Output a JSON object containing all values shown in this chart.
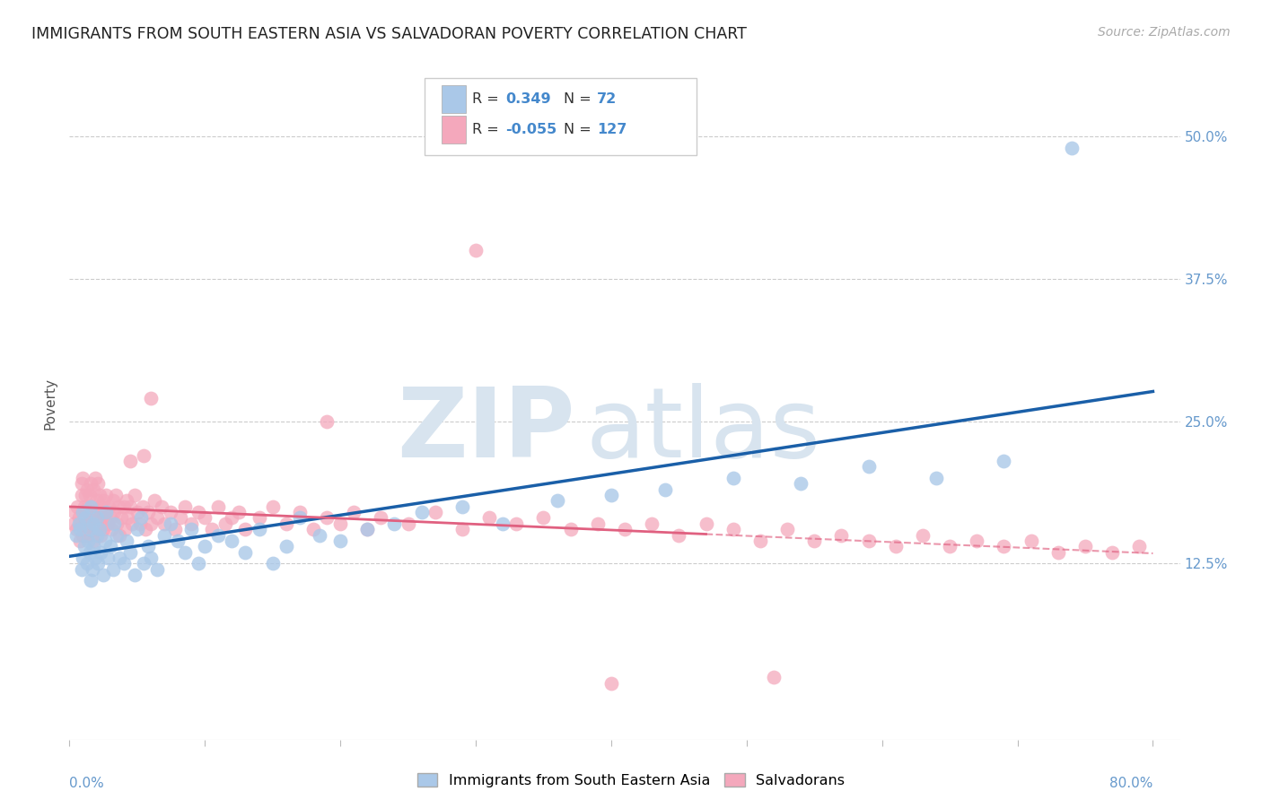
{
  "title": "IMMIGRANTS FROM SOUTH EASTERN ASIA VS SALVADORAN POVERTY CORRELATION CHART",
  "source": "Source: ZipAtlas.com",
  "ylabel": "Poverty",
  "xlim": [
    0.0,
    0.82
  ],
  "ylim": [
    -0.03,
    0.56
  ],
  "blue_R": "0.349",
  "blue_N": "72",
  "pink_R": "-0.055",
  "pink_N": "127",
  "blue_color": "#aac8e8",
  "pink_color": "#f4a8bc",
  "blue_line_color": "#1a5fa8",
  "pink_line_color": "#e06080",
  "background_color": "#ffffff",
  "watermark_color": "#d8e4ef",
  "legend_label_blue": "Immigrants from South Eastern Asia",
  "legend_label_pink": "Salvadorans",
  "ytick_labels": [
    "12.5%",
    "25.0%",
    "37.5%",
    "50.0%"
  ],
  "ytick_values": [
    0.125,
    0.25,
    0.375,
    0.5
  ],
  "tick_color": "#6699cc",
  "axis_color": "#6699cc",
  "blue_scatter_x": [
    0.005,
    0.007,
    0.008,
    0.009,
    0.01,
    0.01,
    0.011,
    0.012,
    0.013,
    0.014,
    0.015,
    0.015,
    0.016,
    0.016,
    0.017,
    0.018,
    0.018,
    0.019,
    0.02,
    0.02,
    0.021,
    0.022,
    0.023,
    0.025,
    0.026,
    0.027,
    0.028,
    0.03,
    0.032,
    0.033,
    0.035,
    0.037,
    0.04,
    0.042,
    0.045,
    0.048,
    0.05,
    0.053,
    0.055,
    0.058,
    0.06,
    0.065,
    0.07,
    0.075,
    0.08,
    0.085,
    0.09,
    0.095,
    0.1,
    0.11,
    0.12,
    0.13,
    0.14,
    0.15,
    0.16,
    0.17,
    0.185,
    0.2,
    0.22,
    0.24,
    0.26,
    0.29,
    0.32,
    0.36,
    0.4,
    0.44,
    0.49,
    0.54,
    0.59,
    0.64,
    0.69,
    0.74
  ],
  "blue_scatter_y": [
    0.15,
    0.16,
    0.155,
    0.12,
    0.17,
    0.13,
    0.14,
    0.165,
    0.125,
    0.145,
    0.135,
    0.155,
    0.11,
    0.175,
    0.12,
    0.16,
    0.14,
    0.13,
    0.15,
    0.165,
    0.125,
    0.155,
    0.135,
    0.115,
    0.145,
    0.17,
    0.13,
    0.14,
    0.12,
    0.16,
    0.15,
    0.13,
    0.125,
    0.145,
    0.135,
    0.115,
    0.155,
    0.165,
    0.125,
    0.14,
    0.13,
    0.12,
    0.15,
    0.16,
    0.145,
    0.135,
    0.155,
    0.125,
    0.14,
    0.15,
    0.145,
    0.135,
    0.155,
    0.125,
    0.14,
    0.165,
    0.15,
    0.145,
    0.155,
    0.16,
    0.17,
    0.175,
    0.16,
    0.18,
    0.185,
    0.19,
    0.2,
    0.195,
    0.21,
    0.2,
    0.215,
    0.49
  ],
  "pink_scatter_x": [
    0.003,
    0.004,
    0.005,
    0.006,
    0.007,
    0.008,
    0.009,
    0.009,
    0.01,
    0.01,
    0.011,
    0.011,
    0.012,
    0.012,
    0.013,
    0.013,
    0.014,
    0.014,
    0.015,
    0.015,
    0.016,
    0.016,
    0.017,
    0.017,
    0.018,
    0.018,
    0.019,
    0.019,
    0.02,
    0.02,
    0.021,
    0.021,
    0.022,
    0.022,
    0.023,
    0.023,
    0.024,
    0.025,
    0.025,
    0.026,
    0.027,
    0.028,
    0.029,
    0.03,
    0.031,
    0.032,
    0.033,
    0.034,
    0.035,
    0.036,
    0.037,
    0.038,
    0.04,
    0.041,
    0.042,
    0.043,
    0.045,
    0.046,
    0.048,
    0.05,
    0.052,
    0.054,
    0.056,
    0.058,
    0.06,
    0.063,
    0.065,
    0.068,
    0.07,
    0.075,
    0.078,
    0.082,
    0.085,
    0.09,
    0.095,
    0.1,
    0.105,
    0.11,
    0.115,
    0.12,
    0.125,
    0.13,
    0.14,
    0.15,
    0.16,
    0.17,
    0.18,
    0.19,
    0.2,
    0.21,
    0.22,
    0.23,
    0.25,
    0.27,
    0.29,
    0.31,
    0.33,
    0.35,
    0.37,
    0.39,
    0.41,
    0.43,
    0.45,
    0.47,
    0.49,
    0.51,
    0.53,
    0.55,
    0.57,
    0.59,
    0.61,
    0.63,
    0.65,
    0.67,
    0.69,
    0.71,
    0.73,
    0.75,
    0.77,
    0.79,
    0.3,
    0.19,
    0.52,
    0.4,
    0.06,
    0.055,
    0.045
  ],
  "pink_scatter_y": [
    0.16,
    0.17,
    0.155,
    0.175,
    0.165,
    0.145,
    0.185,
    0.195,
    0.15,
    0.2,
    0.165,
    0.175,
    0.155,
    0.185,
    0.16,
    0.19,
    0.15,
    0.175,
    0.165,
    0.185,
    0.155,
    0.195,
    0.16,
    0.175,
    0.145,
    0.19,
    0.165,
    0.2,
    0.155,
    0.18,
    0.17,
    0.195,
    0.16,
    0.185,
    0.15,
    0.175,
    0.165,
    0.155,
    0.18,
    0.17,
    0.185,
    0.16,
    0.175,
    0.165,
    0.155,
    0.18,
    0.17,
    0.185,
    0.16,
    0.175,
    0.15,
    0.165,
    0.175,
    0.155,
    0.18,
    0.165,
    0.175,
    0.16,
    0.185,
    0.17,
    0.16,
    0.175,
    0.155,
    0.17,
    0.16,
    0.18,
    0.165,
    0.175,
    0.16,
    0.17,
    0.155,
    0.165,
    0.175,
    0.16,
    0.17,
    0.165,
    0.155,
    0.175,
    0.16,
    0.165,
    0.17,
    0.155,
    0.165,
    0.175,
    0.16,
    0.17,
    0.155,
    0.165,
    0.16,
    0.17,
    0.155,
    0.165,
    0.16,
    0.17,
    0.155,
    0.165,
    0.16,
    0.165,
    0.155,
    0.16,
    0.155,
    0.16,
    0.15,
    0.16,
    0.155,
    0.145,
    0.155,
    0.145,
    0.15,
    0.145,
    0.14,
    0.15,
    0.14,
    0.145,
    0.14,
    0.145,
    0.135,
    0.14,
    0.135,
    0.14,
    0.4,
    0.25,
    0.025,
    0.02,
    0.27,
    0.22,
    0.215
  ]
}
